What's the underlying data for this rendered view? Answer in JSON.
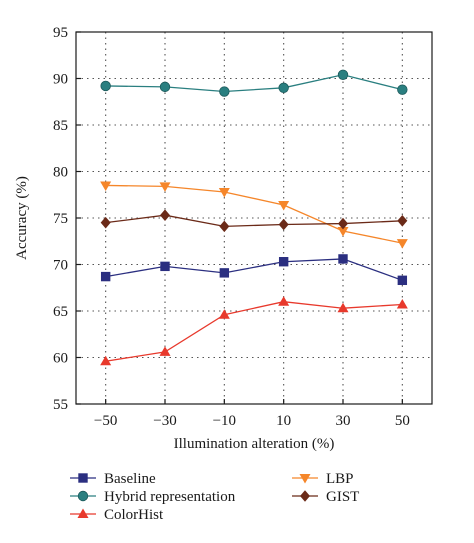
{
  "chart_data": {
    "type": "line",
    "xlabel": "Illumination alteration (%)",
    "ylabel": "Accuracy (%)",
    "x": [
      -50,
      -30,
      -10,
      10,
      30,
      50
    ],
    "x_tick_labels": [
      "−50",
      "−30",
      "−10",
      "10",
      "30",
      "50"
    ],
    "y_ticks": [
      55,
      60,
      65,
      70,
      75,
      80,
      85,
      90,
      95
    ],
    "ylim": [
      55,
      95
    ],
    "grid": "dotted",
    "legend_placement": "bottom",
    "series": [
      {
        "name": "Baseline",
        "color": "#2b2f80",
        "marker": "square",
        "values": [
          68.7,
          69.8,
          69.1,
          70.3,
          70.6,
          68.3
        ]
      },
      {
        "name": "Hybrid representation",
        "color": "#2a7f80",
        "marker": "circle",
        "values": [
          89.2,
          89.1,
          88.6,
          89.0,
          90.4,
          88.8
        ]
      },
      {
        "name": "ColorHist",
        "color": "#e8392c",
        "marker": "triangle-up",
        "values": [
          59.6,
          60.6,
          64.6,
          66.0,
          65.3,
          65.7
        ]
      },
      {
        "name": "LBP",
        "color": "#f5862a",
        "marker": "triangle-down",
        "values": [
          78.5,
          78.4,
          77.8,
          76.4,
          73.6,
          72.3
        ]
      },
      {
        "name": "GIST",
        "color": "#6b2a18",
        "marker": "diamond",
        "values": [
          74.5,
          75.3,
          74.1,
          74.3,
          74.4,
          74.7
        ]
      }
    ]
  }
}
